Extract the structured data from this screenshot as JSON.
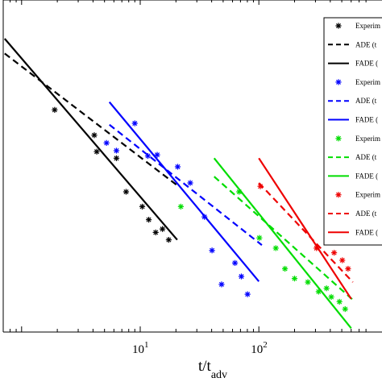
{
  "chart_data": {
    "type": "scatter",
    "xscale": "log",
    "yscale": "log",
    "xlim": [
      0.7,
      800
    ],
    "xlabel_main": "t/t",
    "xlabel_sub": "adv",
    "xticks": [
      {
        "value": 10,
        "base": "10",
        "exp": "1"
      },
      {
        "value": 100,
        "base": "10",
        "exp": "2"
      }
    ],
    "legend_position": "top-right",
    "legend": [
      {
        "label": "Experim",
        "color": "#000000",
        "style": "marker"
      },
      {
        "label": "ADE (t",
        "color": "#000000",
        "style": "dashed"
      },
      {
        "label": "FADE (",
        "color": "#000000",
        "style": "solid"
      },
      {
        "label": "Experim",
        "color": "#0000ff",
        "style": "marker"
      },
      {
        "label": "ADE (t",
        "color": "#0000ff",
        "style": "dashed"
      },
      {
        "label": "FADE (",
        "color": "#0000ff",
        "style": "solid"
      },
      {
        "label": "Experim",
        "color": "#00dd00",
        "style": "marker"
      },
      {
        "label": "ADE (t",
        "color": "#00dd00",
        "style": "dashed"
      },
      {
        "label": "FADE (",
        "color": "#00dd00",
        "style": "solid"
      },
      {
        "label": "Experim",
        "color": "#ee0000",
        "style": "marker"
      },
      {
        "label": "ADE (t",
        "color": "#ee0000",
        "style": "dashed"
      },
      {
        "label": "FADE (",
        "color": "#ee0000",
        "style": "solid"
      }
    ],
    "series": [
      {
        "color": "#000000",
        "points": [
          [
            1.9,
            0.0012
          ],
          [
            4.1,
            0.00082
          ],
          [
            4.3,
            0.00064
          ],
          [
            6.3,
            0.00058
          ],
          [
            7.6,
            0.00035
          ],
          [
            10.4,
            0.00028
          ],
          [
            11.8,
            0.00023
          ],
          [
            13.5,
            0.00019
          ],
          [
            15.4,
            0.0002
          ],
          [
            17.4,
            0.00017
          ]
        ],
        "ade": [
          [
            0.72,
            0.0028
          ],
          [
            21.0,
            0.00038
          ]
        ],
        "fade": [
          [
            0.72,
            0.0035
          ],
          [
            20.5,
            0.00017
          ]
        ]
      },
      {
        "color": "#0000ff",
        "points": [
          [
            5.2,
            0.00073
          ],
          [
            6.3,
            0.00065
          ],
          [
            9.0,
            0.00098
          ],
          [
            11.6,
            0.0006
          ],
          [
            13.9,
            0.00061
          ],
          [
            20.7,
            0.00051
          ],
          [
            26.4,
            0.0004
          ],
          [
            34.8,
            0.00024
          ],
          [
            40.3,
            0.000145
          ],
          [
            48.5,
            8.7e-05
          ],
          [
            62.9,
            0.00012
          ],
          [
            71.2,
            9.8e-05
          ],
          [
            80.3,
            7.5e-05
          ]
        ],
        "ade": [
          [
            5.5,
            0.00096
          ],
          [
            106.0,
            0.000157
          ]
        ],
        "fade": [
          [
            5.5,
            0.00135
          ],
          [
            100.0,
            9.1e-05
          ]
        ]
      },
      {
        "color": "#00dd00",
        "points": [
          [
            22.0,
            0.00028
          ],
          [
            68.2,
            0.00035
          ],
          [
            101.0,
            0.000175
          ],
          [
            139.0,
            0.00015
          ],
          [
            166.0,
            0.00011
          ],
          [
            200.0,
            9.5e-05
          ],
          [
            259.0,
            9e-05
          ],
          [
            319.0,
            7.8e-05
          ],
          [
            372.0,
            8.2e-05
          ],
          [
            408.0,
            7.2e-05
          ],
          [
            478.0,
            6.7e-05
          ],
          [
            534.0,
            6e-05
          ]
        ],
        "ade": [
          [
            42.0,
            0.00044
          ],
          [
            620.0,
            6.9e-05
          ]
        ],
        "fade": [
          [
            42.0,
            0.00058
          ],
          [
            600.0,
            4.5e-05
          ]
        ]
      },
      {
        "color": "#ee0000",
        "points": [
          [
            103.0,
            0.00038
          ],
          [
            306.0,
            0.00015
          ],
          [
            431.0,
            0.00014
          ],
          [
            505.0,
            0.000125
          ],
          [
            565.0,
            0.00011
          ]
        ],
        "ade": [
          [
            100.0,
            0.0004
          ],
          [
            620.0,
            9e-05
          ]
        ],
        "fade": [
          [
            100.0,
            0.00058
          ],
          [
            600.0,
            7e-05
          ]
        ]
      }
    ]
  }
}
